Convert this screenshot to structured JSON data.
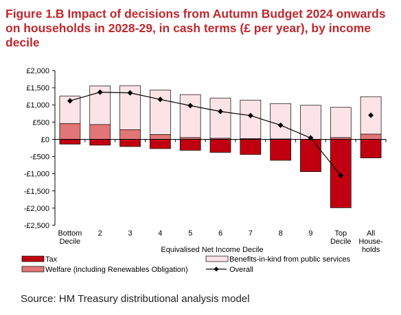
{
  "title": "Figure 1.B Impact of decisions from Autumn Budget 2024 onwards on households in 2028-29, in cash terms (£ per year), by income decile",
  "source": "Source: HM Treasury distributional analysis model",
  "colors": {
    "tax": "#c00010",
    "welfare": "#e27575",
    "benefits": "#fbe3e8",
    "overall": "#000000",
    "grid": "#000000",
    "title": "#c1272d"
  },
  "chart_data": {
    "type": "bar",
    "stacked": true,
    "xlabel": "Equivalised Net Income Decile",
    "ylabel": "",
    "ylim": [
      -2500,
      2000
    ],
    "yticks": [
      2000,
      1500,
      1000,
      500,
      0,
      -500,
      -1000,
      -1500,
      -2000,
      -2500
    ],
    "ytick_labels": [
      "£2,000",
      "£1,500",
      "£1,000",
      "£500",
      "£0",
      "-£500",
      "-£1,000",
      "-£1,500",
      "-£2,000",
      "-£2,500"
    ],
    "grid": false,
    "legend_position": "bottom",
    "categories": [
      "Bottom Decile",
      "2",
      "3",
      "4",
      "5",
      "6",
      "7",
      "8",
      "9",
      "Top Decile",
      "All Households"
    ],
    "category_label_lines": [
      [
        "Bottom",
        "Decile"
      ],
      [
        "2"
      ],
      [
        "3"
      ],
      [
        "4"
      ],
      [
        "5"
      ],
      [
        "6"
      ],
      [
        "7"
      ],
      [
        "8"
      ],
      [
        "9"
      ],
      [
        "Top",
        "Decile"
      ],
      [
        "All",
        "House-",
        "holds"
      ]
    ],
    "series": [
      {
        "name": "Tax",
        "kind": "bar",
        "values": [
          -140,
          -170,
          -210,
          -270,
          -320,
          -380,
          -440,
          -610,
          -940,
          -1990,
          -540
        ]
      },
      {
        "name": "Welfare (including Renewables Obligation)",
        "kind": "bar",
        "values": [
          460,
          430,
          280,
          140,
          50,
          30,
          20,
          10,
          0,
          50,
          150
        ]
      },
      {
        "name": "Benefits-in-kind from public services",
        "kind": "bar",
        "values": [
          800,
          1120,
          1280,
          1290,
          1250,
          1170,
          1120,
          1030,
          990,
          880,
          1090
        ]
      },
      {
        "name": "Overall",
        "kind": "line",
        "values": [
          1120,
          1370,
          1350,
          1160,
          980,
          810,
          690,
          410,
          40,
          -1050,
          700
        ]
      }
    ]
  }
}
